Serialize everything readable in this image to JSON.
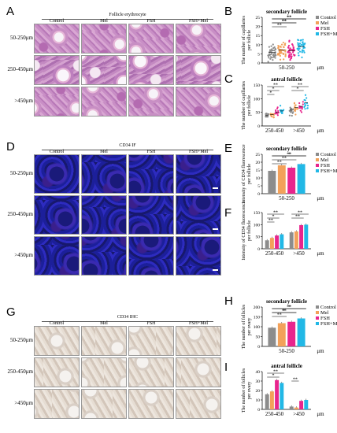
{
  "panels": {
    "A": {
      "letter": "A",
      "title": "Follicle erythrocyte",
      "columns": [
        "Control",
        "Mel",
        "FSH",
        "FSH+Mel"
      ],
      "rows": [
        "50-250μm",
        "250-450μm",
        ">450μm"
      ]
    },
    "D": {
      "letter": "D",
      "title": "CD34 IF",
      "columns": [
        "Control",
        "Mel",
        "FSH",
        "FSH+Mel"
      ],
      "rows": [
        "50-250μm",
        "250-450μm",
        ">450μm"
      ]
    },
    "G": {
      "letter": "G",
      "title": "CD34 IHC",
      "columns": [
        "Control",
        "Mel",
        "FSH",
        "FSH+Mel"
      ],
      "rows": [
        "50-250μm",
        "250-450μm",
        ">450μm"
      ]
    }
  },
  "colors": {
    "Control": "#8c8c8c",
    "Mel": "#f3a15a",
    "FSH": "#e8258d",
    "FSH+Mel": "#22b8e6"
  },
  "chart_data": [
    {
      "panel": "B",
      "type": "scatter",
      "title": "secondary follicle",
      "ylabel": "The number of capillaries per follicle",
      "ylim": [
        0,
        25
      ],
      "yticks": [
        0,
        5,
        10,
        15,
        20,
        25
      ],
      "categories": [
        "50-250"
      ],
      "xunit": "μm",
      "legend": [
        "Control",
        "Mel",
        "FSH",
        "FSH+Mel"
      ],
      "legend_position": "right",
      "series": [
        {
          "name": "Control",
          "mean": 5.8,
          "sd": 3.5
        },
        {
          "name": "Mel",
          "mean": 7.2,
          "sd": 4.0
        },
        {
          "name": "FSH",
          "mean": 6.8,
          "sd": 3.8
        },
        {
          "name": "FSH+Mel",
          "mean": 9.0,
          "sd": 4.2
        }
      ],
      "annotations": [
        "**",
        "**",
        "**",
        "**",
        "**"
      ]
    },
    {
      "panel": "C",
      "type": "scatter",
      "title": "antral follicle",
      "ylabel": "The number of capillaries per follicle",
      "ylim": [
        0,
        150
      ],
      "yticks": [
        0,
        50,
        100,
        150
      ],
      "categories": [
        "250-450",
        ">450"
      ],
      "xunit": "μm",
      "series": [
        {
          "name": "Control",
          "means": [
            38,
            58
          ]
        },
        {
          "name": "Mel",
          "means": [
            42,
            68
          ]
        },
        {
          "name": "FSH",
          "means": [
            50,
            72
          ]
        },
        {
          "name": "FSH+Mel",
          "means": [
            55,
            85
          ]
        }
      ],
      "annotations": [
        "**",
        "*",
        "*",
        "**",
        "*"
      ]
    },
    {
      "panel": "E",
      "type": "bar",
      "title": "secondary follicle",
      "ylabel": "Intensity of CD34 fluorescence per follicle",
      "ylim": [
        0,
        25
      ],
      "yticks": [
        0,
        5,
        10,
        15,
        20,
        25
      ],
      "categories": [
        "50-250"
      ],
      "xunit": "μm",
      "legend": [
        "Control",
        "Mel",
        "FSH",
        "FSH+Mel"
      ],
      "legend_position": "right",
      "series": [
        {
          "name": "Control",
          "values": [
            14.5
          ]
        },
        {
          "name": "Mel",
          "values": [
            18.0
          ]
        },
        {
          "name": "FSH",
          "values": [
            16.5
          ]
        },
        {
          "name": "FSH+Mel",
          "values": [
            18.8
          ]
        }
      ],
      "annotations": [
        "**",
        "**",
        "**",
        "*"
      ]
    },
    {
      "panel": "F",
      "type": "bar",
      "ylabel": "Intensity of CD34 fluorescence per follicle",
      "ylim": [
        0,
        150
      ],
      "yticks": [
        0,
        50,
        100,
        150
      ],
      "categories": [
        "250-450",
        ">450"
      ],
      "xunit": "μm",
      "series": [
        {
          "name": "Control",
          "values": [
            35,
            68
          ]
        },
        {
          "name": "Mel",
          "values": [
            45,
            72
          ]
        },
        {
          "name": "FSH",
          "values": [
            55,
            98
          ]
        },
        {
          "name": "FSH+Mel",
          "values": [
            60,
            100
          ]
        }
      ],
      "annotations": [
        "**",
        "*",
        "**",
        "**",
        "**"
      ]
    },
    {
      "panel": "H",
      "type": "bar",
      "title": "secondary follicle",
      "ylabel": "The number of follicles per ovary",
      "ylim": [
        0,
        200
      ],
      "yticks": [
        0,
        50,
        100,
        150,
        200
      ],
      "categories": [
        "50-250"
      ],
      "xunit": "μm",
      "legend": [
        "Control",
        "Mel",
        "FSH",
        "FSH+Mel"
      ],
      "legend_position": "right",
      "series": [
        {
          "name": "Control",
          "values": [
            95
          ]
        },
        {
          "name": "Mel",
          "values": [
            118
          ]
        },
        {
          "name": "FSH",
          "values": [
            125
          ]
        },
        {
          "name": "FSH+Mel",
          "values": [
            142
          ]
        }
      ],
      "annotations": [
        "**",
        "**",
        "**",
        "*",
        "*"
      ]
    },
    {
      "panel": "I",
      "type": "bar",
      "title": "antral follicle",
      "ylabel": "The number of follicles per ovary",
      "ylim": [
        0,
        40
      ],
      "yticks": [
        0,
        10,
        20,
        30,
        40
      ],
      "categories": [
        "250-450",
        ">450"
      ],
      "xunit": "μm",
      "series": [
        {
          "name": "Control",
          "values": [
            16,
            3
          ]
        },
        {
          "name": "Mel",
          "values": [
            19,
            2
          ]
        },
        {
          "name": "FSH",
          "values": [
            31,
            9
          ]
        },
        {
          "name": "FSH+Mel",
          "values": [
            28,
            10
          ]
        }
      ],
      "annotations": [
        "**",
        "*",
        "**"
      ]
    }
  ]
}
